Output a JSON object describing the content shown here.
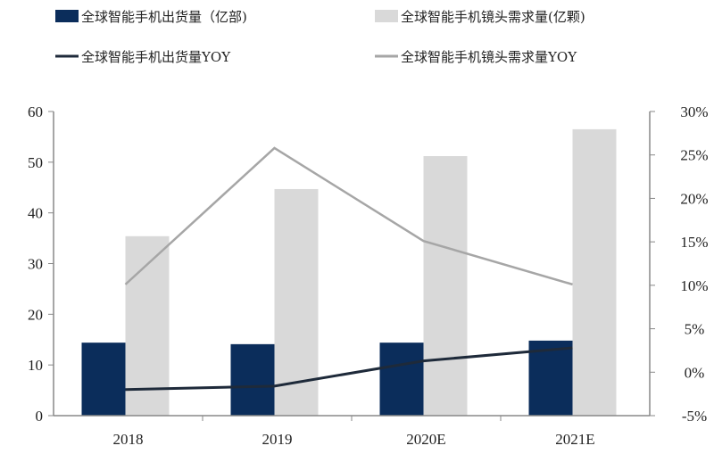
{
  "chart_data": {
    "type": "bar",
    "categories": [
      "2018",
      "2019",
      "2020E",
      "2021E"
    ],
    "series": [
      {
        "name": "全球智能手机出货量（亿部)",
        "kind": "bar",
        "axis": "left",
        "color": "#0b2d5b",
        "values": [
          14.4,
          14.1,
          14.4,
          14.8
        ]
      },
      {
        "name": "全球智能手机镜头需求量(亿颗)",
        "kind": "bar",
        "axis": "left",
        "color": "#d9d9d9",
        "values": [
          35.4,
          44.7,
          51.2,
          56.5
        ]
      },
      {
        "name": "全球智能手机出货量YOY",
        "kind": "line",
        "axis": "right",
        "color": "#1e2a3a",
        "values": [
          -2.0,
          -1.6,
          1.3,
          2.8
        ]
      },
      {
        "name": "全球智能手机镜头需求量YOY",
        "kind": "line",
        "axis": "right",
        "color": "#a6a6a6",
        "values": [
          10.1,
          25.8,
          15.1,
          10.1
        ]
      }
    ],
    "left_axis": {
      "ylim": [
        0,
        60
      ],
      "ticks": [
        "0",
        "10",
        "20",
        "30",
        "40",
        "50",
        "60"
      ]
    },
    "right_axis": {
      "ylim": [
        -5,
        30
      ],
      "ticks": [
        "-5%",
        "0%",
        "5%",
        "10%",
        "15%",
        "20%",
        "25%",
        "30%"
      ]
    },
    "grid": false,
    "legend_position": "top"
  }
}
